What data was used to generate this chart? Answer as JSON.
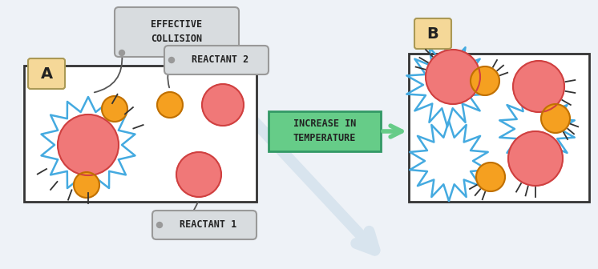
{
  "bg_color": "#eef2f7",
  "box_bg": "#ffffff",
  "label_A_color": "#f5d898",
  "label_B_color": "#f5d898",
  "pink_color": "#f07878",
  "pink_edge": "#d04040",
  "orange_color": "#f5a020",
  "orange_edge": "#c07000",
  "blue_zigzag": "#44aae0",
  "arrow_box_color": "#66cc88",
  "arrow_box_edge": "#339966",
  "arrow_box_text": "INCREASE IN\nTEMPERATURE",
  "label_A": "A",
  "label_B": "B",
  "collision_label": "EFFECTIVE\nCOLLISION",
  "reactant1_label": "REACTANT 1",
  "reactant2_label": "REACTANT 2",
  "label_font_color": "#222222",
  "motion_line_color": "#333333",
  "box_edge_color": "#333333",
  "annotation_color": "#555555",
  "callout_bg": "#d8dcdf",
  "callout_edge": "#999999"
}
